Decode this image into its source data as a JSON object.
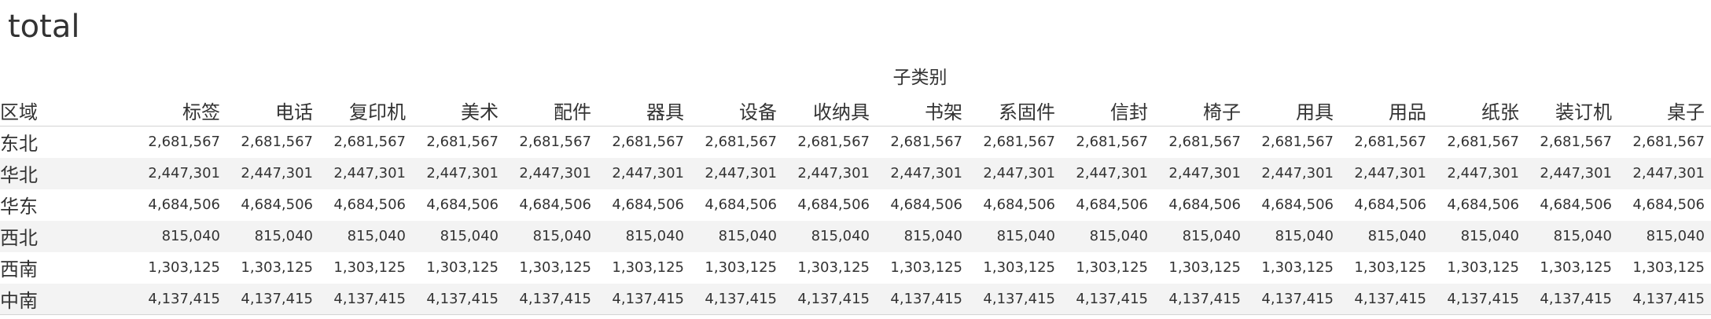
{
  "title": "total",
  "chart_data": {
    "type": "table",
    "title": "total",
    "column_group_label": "子类别",
    "row_header_label": "区域",
    "columns": [
      "标签",
      "电话",
      "复印机",
      "美术",
      "配件",
      "器具",
      "设备",
      "收纳具",
      "书架",
      "系固件",
      "信封",
      "椅子",
      "用具",
      "用品",
      "纸张",
      "装订机",
      "桌子"
    ],
    "rows": [
      {
        "label": "东北",
        "values": [
          "2,681,567",
          "2,681,567",
          "2,681,567",
          "2,681,567",
          "2,681,567",
          "2,681,567",
          "2,681,567",
          "2,681,567",
          "2,681,567",
          "2,681,567",
          "2,681,567",
          "2,681,567",
          "2,681,567",
          "2,681,567",
          "2,681,567",
          "2,681,567",
          "2,681,567"
        ]
      },
      {
        "label": "华北",
        "values": [
          "2,447,301",
          "2,447,301",
          "2,447,301",
          "2,447,301",
          "2,447,301",
          "2,447,301",
          "2,447,301",
          "2,447,301",
          "2,447,301",
          "2,447,301",
          "2,447,301",
          "2,447,301",
          "2,447,301",
          "2,447,301",
          "2,447,301",
          "2,447,301",
          "2,447,301"
        ]
      },
      {
        "label": "华东",
        "values": [
          "4,684,506",
          "4,684,506",
          "4,684,506",
          "4,684,506",
          "4,684,506",
          "4,684,506",
          "4,684,506",
          "4,684,506",
          "4,684,506",
          "4,684,506",
          "4,684,506",
          "4,684,506",
          "4,684,506",
          "4,684,506",
          "4,684,506",
          "4,684,506",
          "4,684,506"
        ]
      },
      {
        "label": "西北",
        "values": [
          "815,040",
          "815,040",
          "815,040",
          "815,040",
          "815,040",
          "815,040",
          "815,040",
          "815,040",
          "815,040",
          "815,040",
          "815,040",
          "815,040",
          "815,040",
          "815,040",
          "815,040",
          "815,040",
          "815,040"
        ]
      },
      {
        "label": "西南",
        "values": [
          "1,303,125",
          "1,303,125",
          "1,303,125",
          "1,303,125",
          "1,303,125",
          "1,303,125",
          "1,303,125",
          "1,303,125",
          "1,303,125",
          "1,303,125",
          "1,303,125",
          "1,303,125",
          "1,303,125",
          "1,303,125",
          "1,303,125",
          "1,303,125",
          "1,303,125"
        ]
      },
      {
        "label": "中南",
        "values": [
          "4,137,415",
          "4,137,415",
          "4,137,415",
          "4,137,415",
          "4,137,415",
          "4,137,415",
          "4,137,415",
          "4,137,415",
          "4,137,415",
          "4,137,415",
          "4,137,415",
          "4,137,415",
          "4,137,415",
          "4,137,415",
          "4,137,415",
          "4,137,415",
          "4,137,415"
        ]
      }
    ]
  }
}
